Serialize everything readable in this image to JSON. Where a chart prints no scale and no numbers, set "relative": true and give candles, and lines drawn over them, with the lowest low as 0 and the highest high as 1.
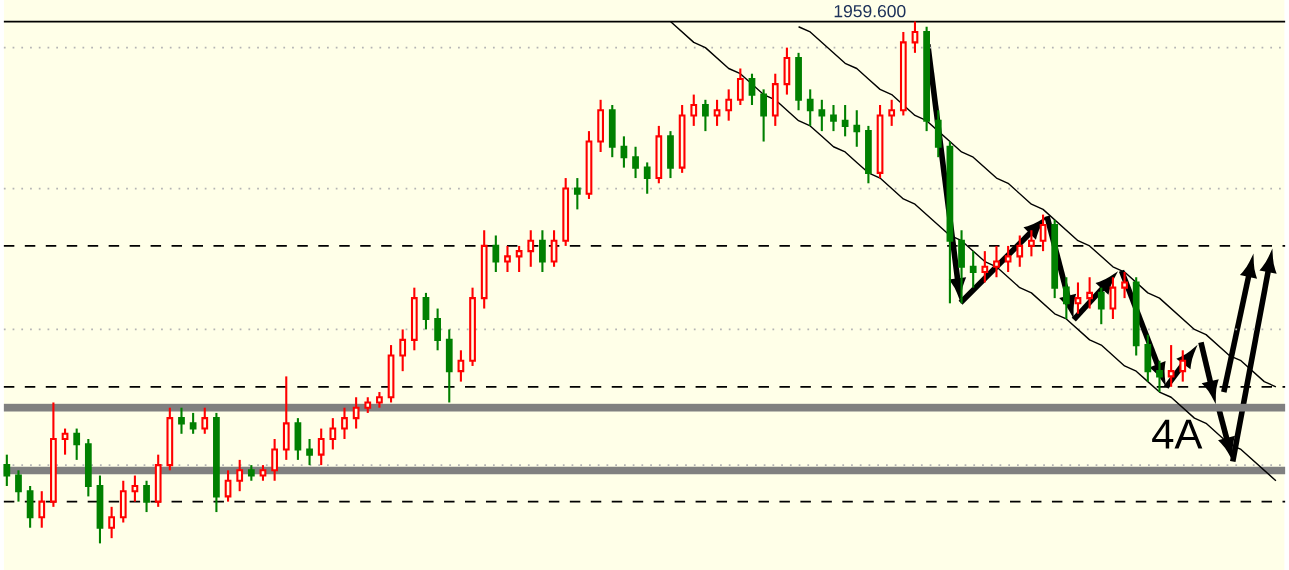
{
  "chart_data": {
    "type": "candlestick",
    "relative": true,
    "categories": [
      null,
      null,
      null,
      null,
      null,
      null,
      null,
      null,
      null,
      null,
      null,
      null,
      null,
      null,
      null,
      null,
      null,
      null,
      null,
      null,
      null,
      null,
      null,
      null,
      null,
      null,
      null,
      null,
      null,
      null,
      null,
      null,
      null,
      null,
      null,
      null,
      null,
      null,
      null,
      null,
      null,
      null,
      null,
      null,
      null,
      null,
      null,
      null,
      null,
      null,
      null,
      null,
      null,
      null,
      null,
      null,
      null,
      null,
      null,
      null,
      null,
      null,
      null,
      null,
      null,
      null,
      null,
      null,
      null,
      null,
      null,
      null,
      null,
      null,
      null,
      null,
      null,
      null,
      null,
      null,
      null,
      null,
      null,
      null,
      null,
      null,
      null,
      null,
      null,
      null,
      null,
      null,
      null,
      null,
      null,
      null,
      null,
      null,
      null,
      null,
      null,
      null,
      null,
      null,
      null,
      null,
      null,
      null,
      null,
      null
    ],
    "ohlc": [
      [
        0.15,
        0.17,
        0.11,
        0.13
      ],
      [
        0.13,
        0.14,
        0.08,
        0.1
      ],
      [
        0.1,
        0.11,
        0.03,
        0.05
      ],
      [
        0.05,
        0.1,
        0.03,
        0.08
      ],
      [
        0.08,
        0.27,
        0.07,
        0.2
      ],
      [
        0.2,
        0.22,
        0.17,
        0.21
      ],
      [
        0.21,
        0.22,
        0.16,
        0.19
      ],
      [
        0.19,
        0.2,
        0.09,
        0.11
      ],
      [
        0.11,
        0.13,
        0,
        0.03
      ],
      [
        0.03,
        0.07,
        0.01,
        0.05
      ],
      [
        0.05,
        0.12,
        0.04,
        0.1
      ],
      [
        0.1,
        0.13,
        0.08,
        0.11
      ],
      [
        0.11,
        0.12,
        0.06,
        0.08
      ],
      [
        0.08,
        0.17,
        0.07,
        0.15
      ],
      [
        0.15,
        0.26,
        0.14,
        0.24
      ],
      [
        0.24,
        0.26,
        0.21,
        0.23
      ],
      [
        0.23,
        0.25,
        0.21,
        0.22
      ],
      [
        0.22,
        0.26,
        0.21,
        0.24
      ],
      [
        0.24,
        0.25,
        0.06,
        0.09
      ],
      [
        0.09,
        0.14,
        0.08,
        0.12
      ],
      [
        0.12,
        0.16,
        0.1,
        0.14
      ],
      [
        0.14,
        0.15,
        0.12,
        0.13
      ],
      [
        0.13,
        0.15,
        0.12,
        0.14
      ],
      [
        0.14,
        0.2,
        0.12,
        0.18
      ],
      [
        0.18,
        0.32,
        0.16,
        0.23
      ],
      [
        0.23,
        0.24,
        0.16,
        0.18
      ],
      [
        0.18,
        0.2,
        0.15,
        0.17
      ],
      [
        0.17,
        0.22,
        0.15,
        0.2
      ],
      [
        0.2,
        0.24,
        0.18,
        0.22
      ],
      [
        0.22,
        0.26,
        0.2,
        0.24
      ],
      [
        0.24,
        0.28,
        0.22,
        0.26
      ],
      [
        0.26,
        0.28,
        0.25,
        0.27
      ],
      [
        0.27,
        0.29,
        0.26,
        0.28
      ],
      [
        0.28,
        0.38,
        0.27,
        0.36
      ],
      [
        0.36,
        0.41,
        0.33,
        0.39
      ],
      [
        0.39,
        0.49,
        0.37,
        0.47
      ],
      [
        0.47,
        0.48,
        0.41,
        0.43
      ],
      [
        0.43,
        0.45,
        0.37,
        0.39
      ],
      [
        0.39,
        0.41,
        0.27,
        0.33
      ],
      [
        0.33,
        0.37,
        0.31,
        0.35
      ],
      [
        0.35,
        0.49,
        0.34,
        0.47
      ],
      [
        0.47,
        0.6,
        0.45,
        0.57
      ],
      [
        0.57,
        0.59,
        0.52,
        0.54
      ],
      [
        0.54,
        0.57,
        0.52,
        0.55
      ],
      [
        0.55,
        0.57,
        0.52,
        0.56
      ],
      [
        0.56,
        0.6,
        0.53,
        0.58
      ],
      [
        0.58,
        0.6,
        0.52,
        0.54
      ],
      [
        0.54,
        0.6,
        0.53,
        0.58
      ],
      [
        0.58,
        0.7,
        0.57,
        0.68
      ],
      [
        0.68,
        0.7,
        0.64,
        0.67
      ],
      [
        0.67,
        0.79,
        0.66,
        0.77
      ],
      [
        0.77,
        0.85,
        0.75,
        0.83
      ],
      [
        0.83,
        0.84,
        0.74,
        0.76
      ],
      [
        0.76,
        0.78,
        0.72,
        0.74
      ],
      [
        0.74,
        0.76,
        0.7,
        0.72
      ],
      [
        0.72,
        0.73,
        0.67,
        0.7
      ],
      [
        0.7,
        0.8,
        0.69,
        0.78
      ],
      [
        0.78,
        0.79,
        0.7,
        0.72
      ],
      [
        0.72,
        0.84,
        0.71,
        0.82
      ],
      [
        0.82,
        0.86,
        0.8,
        0.84
      ],
      [
        0.84,
        0.85,
        0.79,
        0.82
      ],
      [
        0.82,
        0.85,
        0.8,
        0.83
      ],
      [
        0.83,
        0.87,
        0.81,
        0.85
      ],
      [
        0.85,
        0.91,
        0.84,
        0.89
      ],
      [
        0.89,
        0.9,
        0.84,
        0.86
      ],
      [
        0.86,
        0.87,
        0.77,
        0.82
      ],
      [
        0.82,
        0.9,
        0.8,
        0.88
      ],
      [
        0.88,
        0.95,
        0.86,
        0.93
      ],
      [
        0.93,
        0.94,
        0.83,
        0.85
      ],
      [
        0.85,
        0.87,
        0.8,
        0.83
      ],
      [
        0.83,
        0.85,
        0.79,
        0.82
      ],
      [
        0.82,
        0.84,
        0.79,
        0.81
      ],
      [
        0.81,
        0.84,
        0.78,
        0.8
      ],
      [
        0.8,
        0.83,
        0.76,
        0.79
      ],
      [
        0.79,
        0.8,
        0.69,
        0.71
      ],
      [
        0.71,
        0.84,
        0.7,
        0.82
      ],
      [
        0.82,
        0.85,
        0.8,
        0.83
      ],
      [
        0.83,
        0.98,
        0.82,
        0.96
      ],
      [
        0.96,
        1,
        0.94,
        0.98
      ],
      [
        0.98,
        0.99,
        0.79,
        0.81
      ],
      [
        0.81,
        0.83,
        0.74,
        0.76
      ],
      [
        0.76,
        0.77,
        0.46,
        0.58
      ],
      [
        0.58,
        0.6,
        0.46,
        0.53
      ],
      [
        0.53,
        0.56,
        0.49,
        0.52
      ],
      [
        0.52,
        0.56,
        0.5,
        0.53
      ],
      [
        0.53,
        0.57,
        0.51,
        0.54
      ],
      [
        0.54,
        0.57,
        0.52,
        0.55
      ],
      [
        0.55,
        0.59,
        0.53,
        0.57
      ],
      [
        0.57,
        0.6,
        0.55,
        0.58
      ],
      [
        0.58,
        0.63,
        0.56,
        0.61
      ],
      [
        0.61,
        0.62,
        0.47,
        0.49
      ],
      [
        0.49,
        0.51,
        0.43,
        0.46
      ],
      [
        0.46,
        0.5,
        0.44,
        0.47
      ],
      [
        0.47,
        0.51,
        0.45,
        0.48
      ],
      [
        0.48,
        0.49,
        0.42,
        0.45
      ],
      [
        0.45,
        0.51,
        0.43,
        0.49
      ],
      [
        0.49,
        0.52,
        0.47,
        0.5
      ],
      [
        0.5,
        0.51,
        0.36,
        0.38
      ],
      [
        0.38,
        0.4,
        0.31,
        0.33
      ],
      [
        0.33,
        0.35,
        0.29,
        0.32
      ],
      [
        0.32,
        0.38,
        0.3,
        0.33
      ],
      [
        0.33,
        0.37,
        0.31,
        0.35
      ],
      null,
      null,
      null,
      null,
      null,
      null,
      null,
      null
    ],
    "colors": [
      "#008000",
      "#008000",
      "#008000",
      "#ff0000",
      "#ff0000",
      "#ff0000",
      "#008000",
      "#008000",
      "#008000",
      "#ff0000",
      "#ff0000",
      "#ff0000",
      "#008000",
      "#ff0000",
      "#ff0000",
      "#008000",
      "#008000",
      "#ff0000",
      "#008000",
      "#ff0000",
      "#ff0000",
      "#008000",
      "#ff0000",
      "#ff0000",
      "#ff0000",
      "#008000",
      "#008000",
      "#ff0000",
      "#ff0000",
      "#ff0000",
      "#ff0000",
      "#ff0000",
      "#ff0000",
      "#ff0000",
      "#ff0000",
      "#ff0000",
      "#008000",
      "#008000",
      "#008000",
      "#ff0000",
      "#ff0000",
      "#ff0000",
      "#008000",
      "#ff0000",
      "#ff0000",
      "#ff0000",
      "#008000",
      "#ff0000",
      "#ff0000",
      "#008000",
      "#ff0000",
      "#ff0000",
      "#008000",
      "#008000",
      "#008000",
      "#008000",
      "#ff0000",
      "#008000",
      "#ff0000",
      "#ff0000",
      "#008000",
      "#ff0000",
      "#ff0000",
      "#ff0000",
      "#008000",
      "#008000",
      "#ff0000",
      "#ff0000",
      "#008000",
      "#008000",
      "#008000",
      "#008000",
      "#008000",
      "#008000",
      "#008000",
      "#ff0000",
      "#ff0000",
      "#ff0000",
      "#ff0000",
      "#008000",
      "#008000",
      "#008000",
      "#008000",
      "#008000",
      "#ff0000",
      "#ff0000",
      "#ff0000",
      "#ff0000",
      "#ff0000",
      "#ff0000",
      "#008000",
      "#008000",
      "#ff0000",
      "#ff0000",
      "#008000",
      "#ff0000",
      "#ff0000",
      "#008000",
      "#008000",
      "#008000",
      "#ff0000",
      "#ff0000",
      null,
      null,
      null,
      null,
      null,
      null,
      null,
      null
    ],
    "ref_lines": [
      {
        "axis": "y",
        "value": 1,
        "color": "#000000",
        "line_style": "solid"
      },
      {
        "axis": "y",
        "value": 0.95,
        "color": "#b4b4b4",
        "line_style": "dotted"
      },
      {
        "axis": "y",
        "value": 0.68,
        "color": "#b4b4b4",
        "line_style": "dotted"
      },
      {
        "axis": "y",
        "value": 0.57,
        "color": "#000000",
        "line_style": "dashed"
      },
      {
        "axis": "y",
        "value": 0.41,
        "color": "#b4b4b4",
        "line_style": "dotted"
      },
      {
        "axis": "y",
        "value": 0.3,
        "color": "#000000",
        "line_style": "dashed"
      },
      {
        "axis": "y",
        "value": 0.26,
        "color": "#808080",
        "line_style": "solid"
      },
      {
        "axis": "y",
        "value": 0.15,
        "color": "#b4b4b4",
        "line_style": "dotted"
      },
      {
        "axis": "y",
        "value": 0.14,
        "color": "#808080",
        "line_style": "solid"
      },
      {
        "axis": "y",
        "value": 0.08,
        "color": "#000000",
        "line_style": "dashed"
      }
    ],
    "series": [
      {
        "type": "line",
        "color": "#000000",
        "values": [
          null,
          null,
          null,
          null,
          null,
          null,
          null,
          null,
          null,
          null,
          null,
          null,
          null,
          null,
          null,
          null,
          null,
          null,
          null,
          null,
          null,
          null,
          null,
          null,
          null,
          null,
          null,
          null,
          null,
          null,
          null,
          null,
          null,
          null,
          null,
          null,
          null,
          null,
          null,
          null,
          null,
          null,
          null,
          null,
          null,
          null,
          null,
          null,
          null,
          null,
          null,
          null,
          null,
          null,
          null,
          null,
          null,
          1.0,
          0.98,
          0.96,
          0.95,
          0.93,
          0.91,
          0.9,
          0.88,
          0.86,
          0.85,
          0.83,
          0.81,
          0.8,
          0.78,
          0.76,
          0.75,
          0.73,
          0.71,
          0.7,
          0.68,
          0.66,
          0.65,
          0.63,
          0.61,
          0.59,
          0.58,
          0.56,
          0.54,
          0.53,
          0.51,
          0.49,
          0.48,
          0.46,
          0.44,
          0.43,
          0.41,
          0.39,
          0.38,
          0.36,
          0.34,
          0.33,
          0.31,
          0.29,
          0.28,
          0.26,
          0.24,
          0.23,
          0.21,
          0.19,
          0.18,
          0.16,
          0.14,
          0.12
        ]
      },
      {
        "type": "line",
        "color": "#000000",
        "values": [
          null,
          null,
          null,
          null,
          null,
          null,
          null,
          null,
          null,
          null,
          null,
          null,
          null,
          null,
          null,
          null,
          null,
          null,
          null,
          null,
          null,
          null,
          null,
          null,
          null,
          null,
          null,
          null,
          null,
          null,
          null,
          null,
          null,
          null,
          null,
          null,
          null,
          null,
          null,
          null,
          null,
          null,
          null,
          null,
          null,
          null,
          null,
          null,
          null,
          null,
          null,
          null,
          null,
          null,
          null,
          null,
          null,
          null,
          null,
          null,
          null,
          null,
          null,
          null,
          null,
          null,
          null,
          null,
          0.99,
          0.98,
          0.96,
          0.94,
          0.92,
          0.91,
          0.89,
          0.87,
          0.86,
          0.84,
          0.82,
          0.81,
          0.79,
          0.77,
          0.75,
          0.74,
          0.72,
          0.7,
          0.69,
          0.67,
          0.65,
          0.64,
          0.62,
          0.6,
          0.58,
          0.57,
          0.55,
          0.53,
          0.52,
          0.5,
          0.48,
          0.47,
          0.45,
          0.43,
          0.41,
          0.4,
          0.38,
          0.36,
          0.35,
          0.33,
          0.31,
          0.3
        ]
      }
    ],
    "annotations": [
      "1959.600",
      "4A"
    ]
  }
}
